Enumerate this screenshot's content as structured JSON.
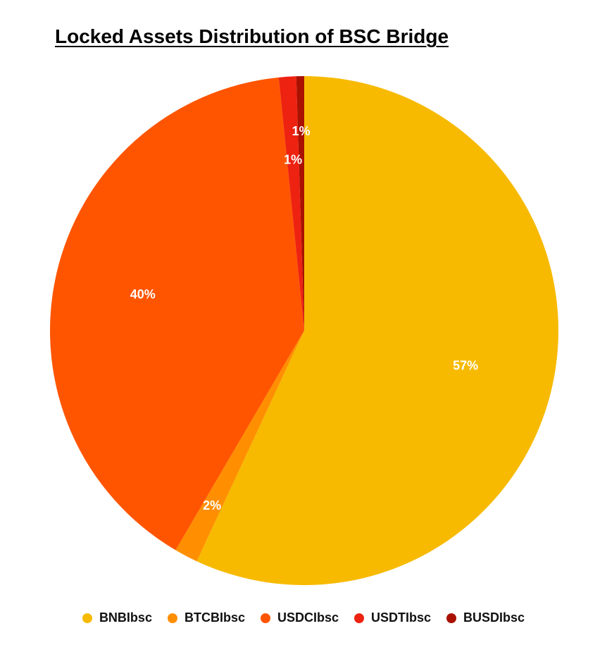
{
  "chart_data": {
    "type": "pie",
    "title": "Locked Assets Distribution of BSC Bridge",
    "legend_position": "bottom",
    "slices": [
      {
        "name": "BNBIbsc",
        "value": 57,
        "label": "57%",
        "color": "#F7BA00"
      },
      {
        "name": "BTCBIbsc",
        "value": 1.5,
        "label": "2%",
        "color": "#FF8F00"
      },
      {
        "name": "USDCIbsc",
        "value": 40,
        "label": "40%",
        "color": "#FF5500"
      },
      {
        "name": "USDTIbsc",
        "value": 1.1,
        "label": "1%",
        "color": "#EE2211"
      },
      {
        "name": "BUSDIbsc",
        "value": 0.5,
        "label": "1%",
        "color": "#AA1100"
      }
    ]
  }
}
